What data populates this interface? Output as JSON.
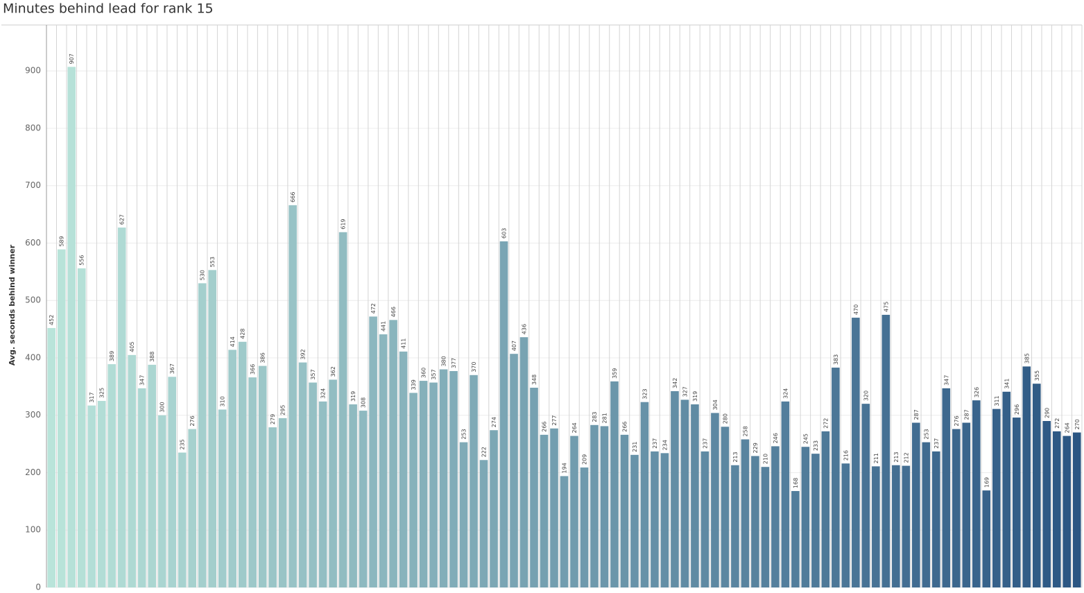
{
  "chart_data": {
    "type": "bar",
    "title": "Minutes behind lead for rank 15",
    "y_label": "Avg. seconds behind winner",
    "values": [
      452,
      589,
      907,
      556,
      317,
      325,
      389,
      627,
      405,
      347,
      388,
      300,
      367,
      235,
      276,
      530,
      553,
      310,
      414,
      428,
      366,
      386,
      279,
      295,
      666,
      392,
      357,
      324,
      362,
      619,
      319,
      308,
      472,
      441,
      466,
      411,
      339,
      360,
      357,
      380,
      377,
      253,
      370,
      222,
      274,
      603,
      407,
      436,
      348,
      266,
      277,
      194,
      264,
      209,
      283,
      281,
      359,
      266,
      231,
      323,
      237,
      234,
      342,
      327,
      319,
      237,
      304,
      280,
      213,
      258,
      229,
      210,
      246,
      324,
      168,
      245,
      233,
      272,
      383,
      216,
      470,
      320,
      211,
      475,
      213,
      212,
      287,
      253,
      237,
      347,
      276,
      287,
      326,
      169,
      311,
      341,
      296,
      385,
      355,
      290,
      272,
      264,
      270
    ],
    "color_range": [
      "#b9e4da",
      "#2b5683"
    ],
    "ylim": [
      0,
      980
    ],
    "yticks": [
      0,
      100,
      200,
      300,
      400,
      500,
      600,
      700,
      800,
      900
    ],
    "grid": true
  }
}
